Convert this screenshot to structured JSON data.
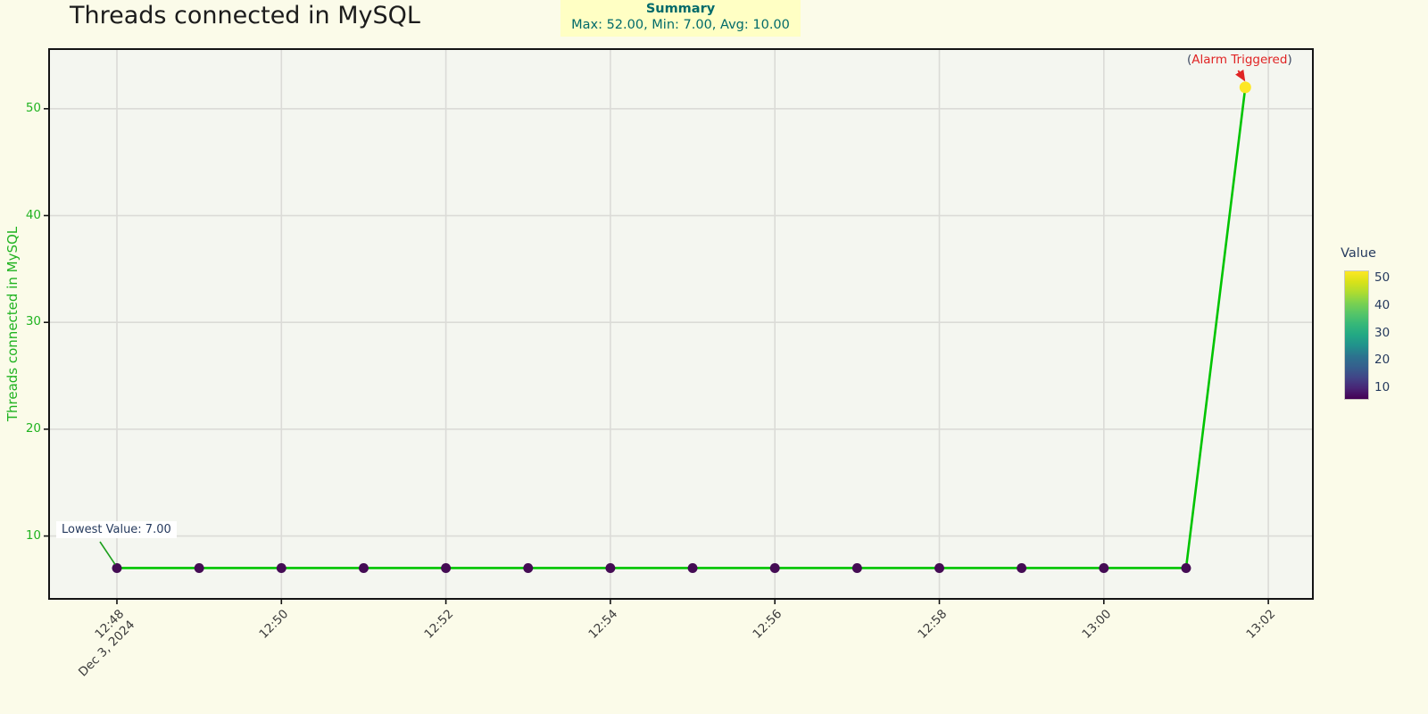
{
  "page": {
    "background": "#fbfbe9"
  },
  "header": {
    "title": "Threads connected in MySQL"
  },
  "summary": {
    "heading": "Summary",
    "line": "Max: 52.00, Min: 7.00, Avg: 10.00",
    "bg": "#ffffc4",
    "text_color": "#006a6a"
  },
  "annotations": {
    "lowest": "Lowest Value: 7.00",
    "alarm_prefix": "(",
    "alarm_text": "Alarm Triggered",
    "alarm_suffix": ")"
  },
  "chart_data": {
    "type": "line",
    "title": "Threads connected in MySQL",
    "x": [
      "12:48",
      "12:49",
      "12:50",
      "12:51",
      "12:52",
      "12:53",
      "12:54",
      "12:55",
      "12:56",
      "12:57",
      "12:58",
      "12:59",
      "13:00",
      "13:01",
      "13:02"
    ],
    "values": [
      7,
      7,
      7,
      7,
      7,
      7,
      7,
      7,
      7,
      7,
      7,
      7,
      7,
      7,
      52
    ],
    "xlabel": "",
    "ylabel": "Threads connected in MySQL",
    "x_date": "Dec 3, 2024",
    "x_ticks": [
      "12:48",
      "12:50",
      "12:52",
      "12:54",
      "12:56",
      "12:58",
      "13:00",
      "13:02"
    ],
    "y_ticks": [
      10,
      20,
      30,
      40,
      50
    ],
    "ylim": [
      4.2,
      55.5
    ],
    "grid": true,
    "stats": {
      "max": 52.0,
      "min": 7.0,
      "avg": 10.0
    },
    "colors": {
      "line": "#00c400",
      "marker": "#440c54",
      "marker_peak": "#fde725",
      "axis_green": "#21b321",
      "navy": "#253a5e",
      "alarm_red": "#e02424",
      "paren": "#3f4a63",
      "plot_bg": "#f4f6f0",
      "grid": "#dbdbd7",
      "spine": "#141414",
      "lowest_arrow": "#1ca01c"
    },
    "colorbar": {
      "title": "Value",
      "ticks": [
        50,
        40,
        30,
        20,
        10
      ],
      "cmin": 6.2,
      "cmax": 52.6,
      "legend_position": "right",
      "gradient": [
        "#fde725",
        "#d8e219",
        "#addc30",
        "#7ad151",
        "#54c568",
        "#35b779",
        "#22a884",
        "#21918c",
        "#2c728e",
        "#355f8d",
        "#414487",
        "#482475",
        "#440154"
      ]
    }
  }
}
